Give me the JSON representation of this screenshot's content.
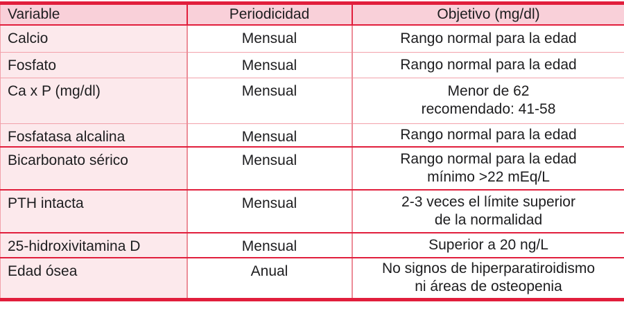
{
  "colors": {
    "accent_strong": "#e11e3c",
    "header_bg": "#f9d0d9",
    "label_bg": "#fce9ec",
    "divider_light": "#f2a1aa",
    "divider_vertical": "#ec8d98",
    "text": "#1d1d1f"
  },
  "table": {
    "columns": [
      {
        "label": "Variable"
      },
      {
        "label": "Periodicidad"
      },
      {
        "label": "Objetivo (mg/dl)"
      }
    ],
    "rows": [
      {
        "variable": "Calcio",
        "periodicidad": "Mensual",
        "objetivo": [
          "Rango normal para la edad"
        ],
        "divider": "light"
      },
      {
        "variable": "Fosfato",
        "periodicidad": "Mensual",
        "objetivo": [
          "Rango normal para la edad"
        ],
        "divider": "light"
      },
      {
        "variable": "Ca x P (mg/dl)",
        "periodicidad": "Mensual",
        "objetivo": [
          "Menor de 62",
          "recomendado: 41-58"
        ],
        "divider": "light"
      },
      {
        "variable": "Fosfatasa alcalina",
        "periodicidad": "Mensual",
        "objetivo": [
          "Rango normal para la edad"
        ],
        "divider": "strong"
      },
      {
        "variable": "Bicarbonato sérico",
        "periodicidad": "Mensual",
        "objetivo": [
          "Rango normal para la edad",
          "mínimo >22 mEq/L"
        ],
        "divider": "strong"
      },
      {
        "variable": "PTH intacta",
        "periodicidad": "Mensual",
        "objetivo": [
          "2-3 veces el límite superior",
          "de la normalidad"
        ],
        "divider": "strong"
      },
      {
        "variable": "25-hidroxivitamina D",
        "periodicidad": "Mensual",
        "objetivo": [
          "Superior a 20 ng/L"
        ],
        "divider": "strong"
      },
      {
        "variable": "Edad ósea",
        "periodicidad": "Anual",
        "objetivo": [
          "No signos de hiperparatiroidismo",
          "ni áreas de osteopenia"
        ],
        "divider": "none"
      }
    ]
  }
}
